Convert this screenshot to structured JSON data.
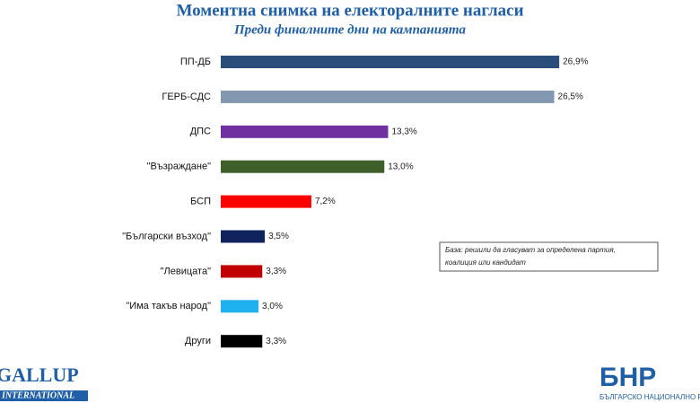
{
  "chart_data": {
    "type": "bar",
    "orientation": "horizontal",
    "title": "Моментна снимка на електоралните нагласи",
    "subtitle": "Преди финалните дни на кампанията",
    "categories": [
      "ПП-ДБ",
      "ГЕРБ-СДС",
      "ДПС",
      "\"Възраждане\"",
      "БСП",
      "\"Български възход\"",
      "\"Левицата\"",
      "\"Има такъв народ\"",
      "Други"
    ],
    "values": [
      26.9,
      26.5,
      13.3,
      13.0,
      7.2,
      3.5,
      3.3,
      3.0,
      3.3
    ],
    "value_labels": [
      "26,9%",
      "26,5%",
      "13,3%",
      "13,0%",
      "7,2%",
      "3,5%",
      "3,3%",
      "3,0%",
      "3,3%"
    ],
    "colors": [
      "#2a4d7a",
      "#8497b0",
      "#7030a0",
      "#3f5f2a",
      "#ff0000",
      "#10235e",
      "#c00000",
      "#1fb0ef",
      "#000000"
    ],
    "annotation": [
      "База: решили да гласуват за определена партия,",
      "коалиция или кандидат"
    ],
    "logos": {
      "left": [
        "GALLUP",
        "INTERNATIONAL"
      ],
      "right": [
        "БНР",
        "БЪЛГАРСКО НАЦИОНАЛНО РАДИО"
      ]
    }
  }
}
